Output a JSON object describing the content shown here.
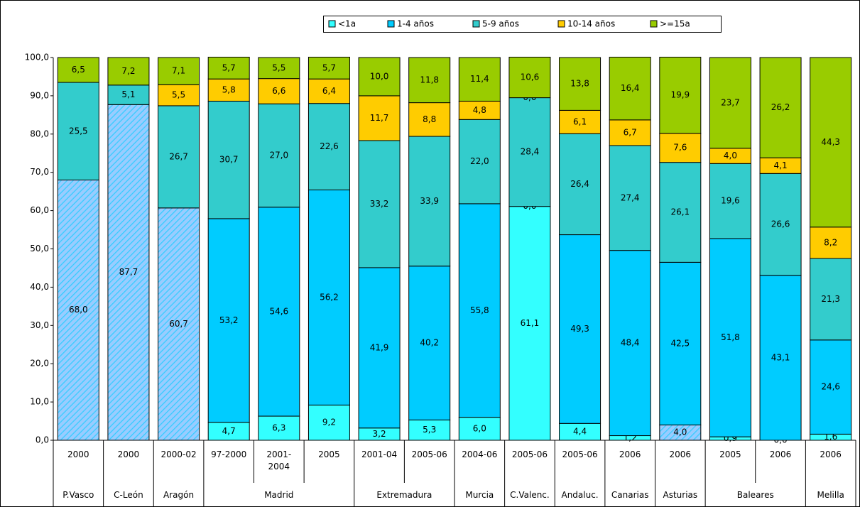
{
  "chart_data": {
    "type": "stacked-bar",
    "ylim": [
      0,
      100
    ],
    "yticks": [
      {
        "value": 0,
        "label": "0,0"
      },
      {
        "value": 10,
        "label": "10,0"
      },
      {
        "value": 20,
        "label": "20,0"
      },
      {
        "value": 30,
        "label": "30,0"
      },
      {
        "value": 40,
        "label": "40,0"
      },
      {
        "value": 50,
        "label": "50,0"
      },
      {
        "value": 60,
        "label": "60,0"
      },
      {
        "value": 70,
        "label": "70,0"
      },
      {
        "value": 80,
        "label": "80,0"
      },
      {
        "value": 90,
        "label": "90,0"
      },
      {
        "value": 100,
        "label": "100,0"
      }
    ],
    "grid": false,
    "legend": "top",
    "categories": [
      "2000",
      "2000",
      "2000-02",
      "97-2000",
      "2001-\n2004",
      "2005",
      "2001-04",
      "2005-06",
      "2004-06",
      "2005-06",
      "2005-06",
      "2006",
      "2006",
      "2005",
      "2006",
      "2006"
    ],
    "groups": [
      {
        "name": "P.Vasco",
        "span": 1
      },
      {
        "name": "C-León",
        "span": 1
      },
      {
        "name": "Aragón",
        "span": 1
      },
      {
        "name": "Madrid",
        "span": 3
      },
      {
        "name": "Extremadura",
        "span": 2
      },
      {
        "name": "Murcia",
        "span": 1
      },
      {
        "name": "C.Valenc.",
        "span": 1
      },
      {
        "name": "Andaluc.",
        "span": 1
      },
      {
        "name": "Canarias",
        "span": 1
      },
      {
        "name": "Asturias",
        "span": 1
      },
      {
        "name": "Baleares",
        "span": 2
      },
      {
        "name": "Melilla",
        "span": 1
      }
    ],
    "series": [
      {
        "name": "<1a",
        "color": "#33ffff",
        "hatch_color": "#99ccff",
        "hatched": [
          true,
          true,
          true,
          false,
          false,
          false,
          false,
          false,
          false,
          false,
          false,
          false,
          true,
          false,
          false,
          false
        ],
        "values": [
          68.0,
          87.7,
          60.7,
          4.7,
          6.3,
          9.2,
          3.2,
          5.3,
          6.0,
          61.1,
          4.4,
          1.2,
          4.0,
          0.9,
          0.0,
          1.6
        ],
        "value_labels": [
          "68,0",
          "87,7",
          "60,7",
          "4,7",
          "6,3",
          "9,2",
          "3,2",
          "5,3",
          "6,0",
          "61,1",
          "4,4",
          "1,2",
          "4,0",
          "0,9",
          "0,0",
          "1,6"
        ]
      },
      {
        "name": "1-4 años",
        "color": "#00ccff",
        "values": [
          null,
          null,
          null,
          53.2,
          54.6,
          56.2,
          41.9,
          40.2,
          55.8,
          0.0,
          49.3,
          48.4,
          42.5,
          51.8,
          43.1,
          24.6
        ],
        "value_labels": [
          null,
          null,
          null,
          "53,2",
          "54,6",
          "56,2",
          "41,9",
          "40,2",
          "55,8",
          "0,0",
          "49,3",
          "48,4",
          "42,5",
          "51,8",
          "43,1",
          "24,6"
        ]
      },
      {
        "name": "5-9 años",
        "color": "#33cccc",
        "values": [
          25.5,
          5.1,
          26.7,
          30.7,
          27.0,
          22.6,
          33.2,
          33.9,
          22.0,
          28.4,
          26.4,
          27.4,
          26.1,
          19.6,
          26.6,
          21.3
        ],
        "value_labels": [
          "25,5",
          "5,1",
          "26,7",
          "30,7",
          "27,0",
          "22,6",
          "33,2",
          "33,9",
          "22,0",
          "28,4",
          "26,4",
          "27,4",
          "26,1",
          "19,6",
          "26,6",
          "21,3"
        ]
      },
      {
        "name": "10-14 años",
        "color": "#ffcc00",
        "values": [
          null,
          null,
          5.5,
          5.8,
          6.6,
          6.4,
          11.7,
          8.8,
          4.8,
          0.0,
          6.1,
          6.7,
          7.6,
          4.0,
          4.1,
          8.2
        ],
        "value_labels": [
          null,
          null,
          "5,5",
          "5,8",
          "6,6",
          "6,4",
          "11,7",
          "8,8",
          "4,8",
          "0,0",
          "6,1",
          "6,7",
          "7,6",
          "4,0",
          "4,1",
          "8,2"
        ]
      },
      {
        "name": ">=15a",
        "color": "#99cc00",
        "values": [
          6.5,
          7.2,
          7.1,
          5.7,
          5.5,
          5.7,
          10.0,
          11.8,
          11.4,
          10.6,
          13.8,
          16.4,
          19.9,
          23.7,
          26.2,
          44.3
        ],
        "value_labels": [
          "6,5",
          "7,2",
          "7,1",
          "5,7",
          "5,5",
          "5,7",
          "10,0",
          "11,8",
          "11,4",
          "10,6",
          "13,8",
          "16,4",
          "19,9",
          "23,7",
          "26,2",
          "44,3"
        ]
      }
    ]
  }
}
